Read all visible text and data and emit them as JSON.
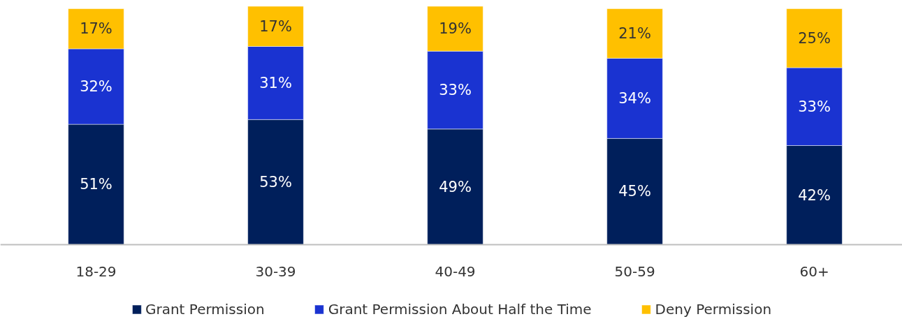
{
  "chart_data": {
    "type": "bar",
    "stacked": true,
    "legend": "bottom",
    "categories": [
      "18-29",
      "30-39",
      "40-49",
      "50-59",
      "60+"
    ],
    "series": [
      {
        "name": "Grant Permission",
        "color": "#001f5b",
        "values": [
          51,
          53,
          49,
          45,
          42
        ],
        "value_labels": [
          "51%",
          "53%",
          "49%",
          "45%",
          "42%"
        ]
      },
      {
        "name": "Grant Permission About Half the Time",
        "color": "#1a33d1",
        "values": [
          32,
          31,
          33,
          34,
          33
        ],
        "value_labels": [
          "32%",
          "31%",
          "33%",
          "34%",
          "33%"
        ]
      },
      {
        "name": "Deny Permission",
        "color": "#ffc000",
        "values": [
          17,
          17,
          19,
          21,
          25
        ],
        "value_labels": [
          "17%",
          "17%",
          "19%",
          "21%",
          "25%"
        ]
      }
    ]
  }
}
